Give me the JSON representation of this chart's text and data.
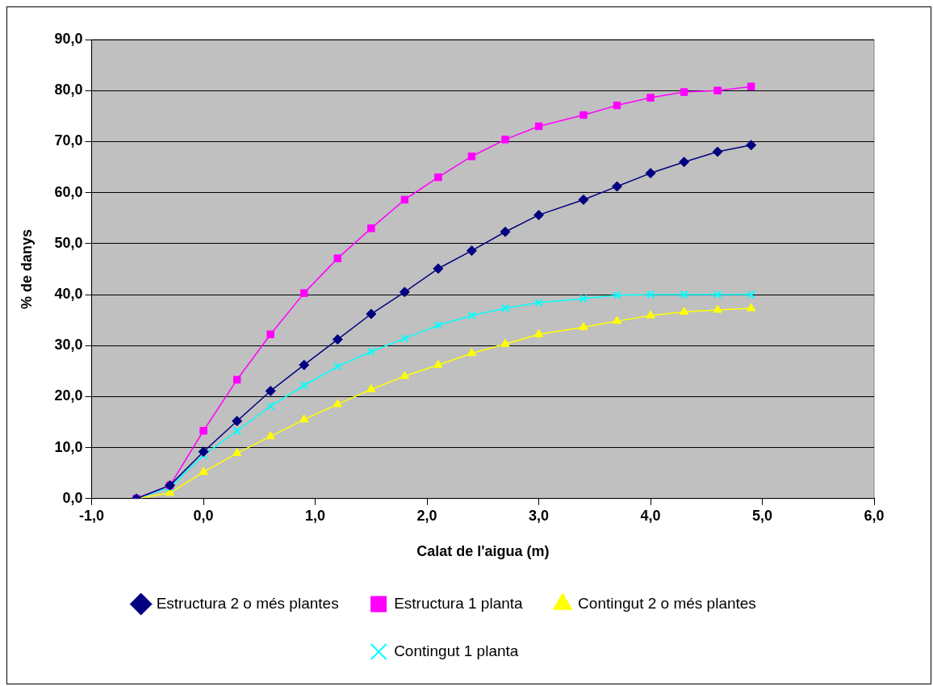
{
  "chart_data": {
    "type": "line",
    "xlabel": "Calat de l'aigua (m)",
    "ylabel": "% de danys",
    "x": [
      -0.6,
      -0.3,
      0,
      0.3,
      0.6,
      0.9,
      1.2,
      1.5,
      1.8,
      2.1,
      2.4,
      2.7,
      3.0,
      3.4,
      3.7,
      4.0,
      4.3,
      4.6,
      4.9
    ],
    "xlim": [
      -1,
      6
    ],
    "xticks": [
      {
        "value": -1,
        "label": "-1,0"
      },
      {
        "value": 0,
        "label": "0,0"
      },
      {
        "value": 1,
        "label": "1,0"
      },
      {
        "value": 2,
        "label": "2,0"
      },
      {
        "value": 3,
        "label": "3,0"
      },
      {
        "value": 4,
        "label": "4,0"
      },
      {
        "value": 5,
        "label": "5,0"
      },
      {
        "value": 6,
        "label": "6,0"
      }
    ],
    "ylim": [
      0,
      90
    ],
    "yticks": [
      {
        "value": 0,
        "label": "0,0"
      },
      {
        "value": 10,
        "label": "10,0"
      },
      {
        "value": 20,
        "label": "20,0"
      },
      {
        "value": 30,
        "label": "30,0"
      },
      {
        "value": 40,
        "label": "40,0"
      },
      {
        "value": 50,
        "label": "50,0"
      },
      {
        "value": 60,
        "label": "60,0"
      },
      {
        "value": 70,
        "label": "70,0"
      },
      {
        "value": 80,
        "label": "80,0"
      },
      {
        "value": 90,
        "label": "90,0"
      }
    ],
    "grid": "y",
    "legend": "bottom",
    "line_style": "solid",
    "series": [
      {
        "name": "Estructura 2 o més plantes",
        "color": "#000080",
        "marker": "diamond",
        "values": [
          0,
          2.6,
          9.2,
          15.2,
          21.1,
          26.2,
          31.2,
          36.2,
          40.5,
          45.1,
          48.6,
          52.3,
          55.6,
          58.6,
          61.2,
          63.8,
          66.0,
          68.0,
          69.3
        ]
      },
      {
        "name": "Estructura 1 planta",
        "color": "#ff00ff",
        "marker": "square",
        "values": [
          0,
          2.6,
          13.3,
          23.3,
          32.2,
          40.3,
          47.1,
          53.0,
          58.6,
          63.0,
          67.1,
          70.4,
          73.0,
          75.2,
          77.1,
          78.6,
          79.7,
          80.0,
          80.8
        ]
      },
      {
        "name": "Contingut 2 o més plantes",
        "color": "#ffff00",
        "marker": "triangle",
        "values": [
          0,
          1.1,
          5.2,
          8.9,
          12.2,
          15.5,
          18.5,
          21.4,
          24.0,
          26.2,
          28.5,
          30.3,
          32.2,
          33.6,
          34.8,
          35.9,
          36.6,
          37.0,
          37.3
        ]
      },
      {
        "name": "Contingut 1 planta",
        "color": "#00ffff",
        "marker": "cross",
        "values": [
          0,
          2.2,
          8.5,
          13.3,
          18.1,
          22.2,
          25.9,
          28.8,
          31.4,
          34.0,
          35.9,
          37.3,
          38.4,
          39.2,
          39.9,
          40.0,
          40.0,
          40.0,
          40.0
        ]
      }
    ]
  }
}
